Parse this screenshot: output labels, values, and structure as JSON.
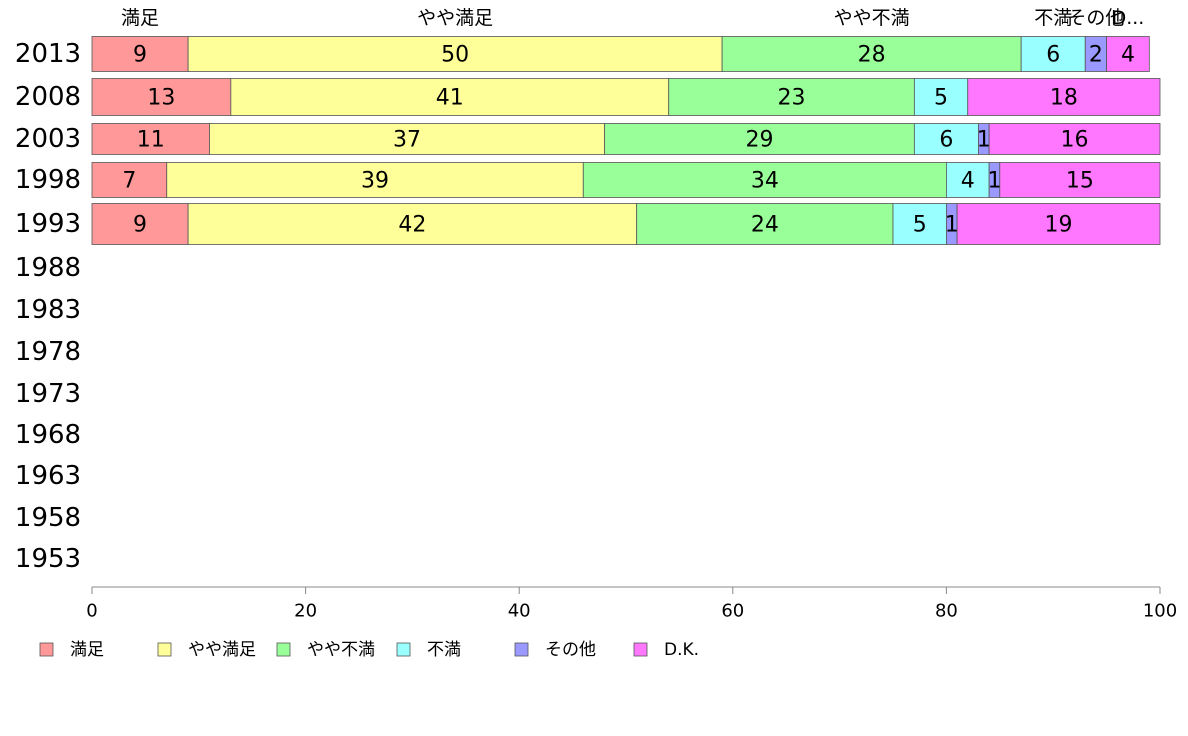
{
  "chart_data": {
    "type": "bar",
    "orientation": "horizontal",
    "stacked": true,
    "categories": [
      "2013",
      "2008",
      "2003",
      "1998",
      "1993",
      "1988",
      "1983",
      "1978",
      "1973",
      "1968",
      "1963",
      "1958",
      "1953"
    ],
    "series": [
      {
        "name": "満足",
        "color": "#ff9999",
        "values": [
          9,
          13,
          11,
          7,
          9,
          null,
          null,
          null,
          null,
          null,
          null,
          null,
          null
        ]
      },
      {
        "name": "やや満足",
        "color": "#ffff99",
        "values": [
          50,
          41,
          37,
          39,
          42,
          null,
          null,
          null,
          null,
          null,
          null,
          null,
          null
        ]
      },
      {
        "name": "やや不満",
        "color": "#99ff99",
        "values": [
          28,
          23,
          29,
          34,
          24,
          null,
          null,
          null,
          null,
          null,
          null,
          null,
          null
        ]
      },
      {
        "name": "不満",
        "color": "#99ffff",
        "values": [
          6,
          5,
          6,
          4,
          5,
          null,
          null,
          null,
          null,
          null,
          null,
          null,
          null
        ]
      },
      {
        "name": "その他",
        "color": "#9999ff",
        "values": [
          2,
          0,
          1,
          1,
          1,
          null,
          null,
          null,
          null,
          null,
          null,
          null,
          null
        ]
      },
      {
        "name": "D.K.",
        "color": "#ff77ff",
        "values": [
          4,
          18,
          16,
          15,
          19,
          null,
          null,
          null,
          null,
          null,
          null,
          null,
          null
        ]
      }
    ],
    "top_labels": [
      "満足",
      "やや満足",
      "やや不満",
      "不満",
      "その他",
      "D..."
    ],
    "xlim": [
      0,
      100
    ],
    "xticks": [
      0,
      20,
      40,
      60,
      80,
      100
    ],
    "legend_position": "bottom",
    "grid": false
  }
}
